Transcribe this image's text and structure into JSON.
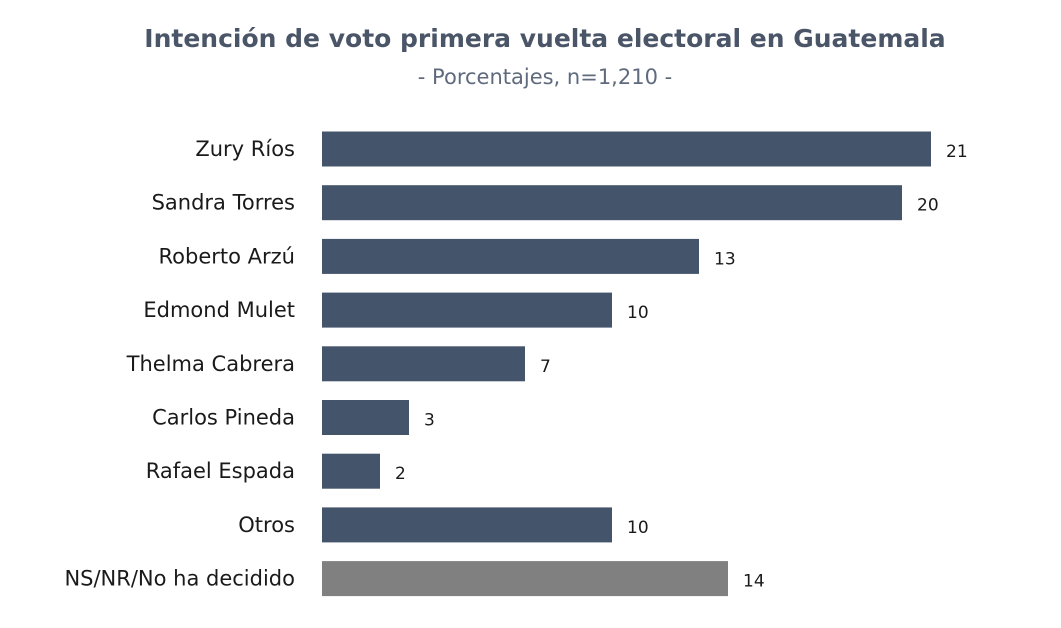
{
  "chart_data": {
    "type": "bar",
    "orientation": "horizontal",
    "title": "Intención de voto primera vuelta electoral en Guatemala",
    "subtitle": "- Porcentajes, n=1,210 -",
    "xlabel": "",
    "ylabel": "",
    "xlim": [
      0,
      21
    ],
    "grid": false,
    "legend": "none",
    "categories": [
      "Zury Ríos",
      "Sandra Torres",
      "Roberto Arzú",
      "Edmond Mulet",
      "Thelma Cabrera",
      "Carlos Pineda",
      "Rafael Espada",
      "Otros",
      "NS/NR/No ha decidido"
    ],
    "values": [
      21,
      20,
      13,
      10,
      7,
      3,
      2,
      10,
      14
    ],
    "value_labels": [
      "21",
      "20",
      "13",
      "10",
      "7",
      "3",
      "2",
      "10",
      "14"
    ],
    "colors": {
      "bar": "#44546a",
      "bar_undecided": "#808080",
      "title": "#4a5568",
      "subtitle": "#5f6b7d",
      "text": "#1a1a1a"
    }
  }
}
